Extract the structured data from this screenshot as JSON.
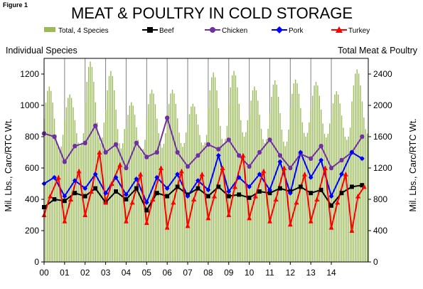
{
  "figure_label": "Figure 1",
  "chart_data": {
    "type": "line",
    "title": "MEAT & POULTRY IN COLD STORAGE",
    "left_header": "Individual Species",
    "right_header": "Total Meat & Poultry",
    "ylabel": "Mil. Lbs., Carc/RTC Wt.",
    "y2label": "Mil. Lbs., Carc/RTC Wt.",
    "ylim": [
      0,
      1300
    ],
    "y2lim": [
      0,
      2600
    ],
    "yticks": [
      0,
      200,
      400,
      600,
      800,
      1000,
      1200
    ],
    "y2ticks": [
      0,
      400,
      800,
      1200,
      1600,
      2000,
      2400
    ],
    "xlim": [
      0,
      15.8
    ],
    "xticks": [
      {
        "label": "00",
        "value": 0
      },
      {
        "label": "01",
        "value": 1
      },
      {
        "label": "02",
        "value": 2
      },
      {
        "label": "03",
        "value": 3
      },
      {
        "label": "04",
        "value": 4
      },
      {
        "label": "05",
        "value": 5
      },
      {
        "label": "06",
        "value": 6
      },
      {
        "label": "07",
        "value": 7
      },
      {
        "label": "08",
        "value": 8
      },
      {
        "label": "09",
        "value": 9
      },
      {
        "label": "10",
        "value": 10
      },
      {
        "label": "11",
        "value": 11
      },
      {
        "label": "12",
        "value": 12
      },
      {
        "label": "13",
        "value": 13
      },
      {
        "label": "14",
        "value": 14
      }
    ],
    "grid": "vertical",
    "legend_position": "top",
    "colors": {
      "total": "#9bbb59",
      "beef": "#000000",
      "chicken": "#7030a0",
      "pork": "#0000ff",
      "turkey": "#ff0000"
    },
    "bar_series": {
      "name": "Total, 4 Species",
      "axis": "right",
      "yearly_min": [
        1420,
        1480,
        1520,
        1450,
        1400,
        1460,
        1470,
        1490,
        1510,
        1600,
        1520,
        1480,
        1600,
        1590,
        1560,
        1640
      ],
      "yearly_max": [
        2240,
        2140,
        2560,
        2440,
        2040,
        2200,
        2200,
        2020,
        2420,
        2440,
        2240,
        2320,
        2330,
        2300,
        2180,
        2460
      ]
    },
    "series": [
      {
        "name": "Beef",
        "marker": "square",
        "x": [
          0,
          0.5,
          1,
          1.5,
          2,
          2.5,
          3,
          3.5,
          4,
          4.5,
          5,
          5.5,
          6,
          6.5,
          7,
          7.5,
          8,
          8.5,
          9,
          9.5,
          10,
          10.5,
          11,
          11.5,
          12,
          12.5,
          13,
          13.5,
          14,
          14.5,
          15,
          15.5
        ],
        "values": [
          350,
          400,
          390,
          440,
          420,
          470,
          380,
          450,
          400,
          470,
          330,
          440,
          420,
          480,
          430,
          470,
          420,
          480,
          420,
          430,
          410,
          450,
          440,
          470,
          450,
          480,
          440,
          460,
          360,
          440,
          480,
          490
        ]
      },
      {
        "name": "Chicken",
        "marker": "circle",
        "x": [
          0,
          0.5,
          1,
          1.5,
          2,
          2.5,
          3,
          3.5,
          4,
          4.5,
          5,
          5.5,
          6,
          6.5,
          7,
          7.5,
          8,
          8.5,
          9,
          9.5,
          10,
          10.5,
          11,
          11.5,
          12,
          12.5,
          13,
          13.5,
          14,
          14.5,
          15,
          15.5
        ],
        "values": [
          820,
          800,
          640,
          740,
          760,
          870,
          700,
          750,
          600,
          760,
          670,
          700,
          920,
          700,
          610,
          680,
          750,
          720,
          780,
          680,
          610,
          700,
          780,
          680,
          600,
          690,
          660,
          740,
          600,
          650,
          700,
          800
        ]
      },
      {
        "name": "Pork",
        "marker": "diamond",
        "x": [
          0,
          0.5,
          1,
          1.5,
          2,
          2.5,
          3,
          3.5,
          4,
          4.5,
          5,
          5.5,
          6,
          6.5,
          7,
          7.5,
          8,
          8.5,
          9,
          9.5,
          10,
          10.5,
          11,
          11.5,
          12,
          12.5,
          13,
          13.5,
          14,
          14.5,
          15,
          15.5
        ],
        "values": [
          500,
          540,
          420,
          520,
          470,
          560,
          440,
          540,
          430,
          530,
          380,
          540,
          470,
          560,
          420,
          520,
          460,
          680,
          450,
          540,
          480,
          560,
          460,
          640,
          440,
          700,
          540,
          650,
          420,
          560,
          700,
          660
        ]
      },
      {
        "name": "Turkey",
        "marker": "triangle",
        "x": [
          0,
          0.3,
          0.7,
          1,
          1.3,
          1.7,
          2,
          2.3,
          2.7,
          3,
          3.3,
          3.7,
          4,
          4.3,
          4.7,
          5,
          5.3,
          5.7,
          6,
          6.3,
          6.7,
          7,
          7.3,
          7.7,
          8,
          8.3,
          8.7,
          9,
          9.3,
          9.7,
          10,
          10.3,
          10.7,
          11,
          11.3,
          11.7,
          12,
          12.3,
          12.7,
          13,
          13.3,
          13.7,
          14,
          14.3,
          14.7,
          15,
          15.3,
          15.6
        ],
        "values": [
          300,
          420,
          540,
          260,
          400,
          580,
          300,
          450,
          700,
          380,
          500,
          620,
          260,
          380,
          560,
          250,
          400,
          600,
          220,
          380,
          580,
          230,
          400,
          560,
          280,
          420,
          600,
          300,
          480,
          680,
          280,
          420,
          580,
          260,
          400,
          600,
          240,
          380,
          560,
          260,
          400,
          600,
          220,
          380,
          560,
          200,
          420,
          480
        ]
      }
    ]
  }
}
